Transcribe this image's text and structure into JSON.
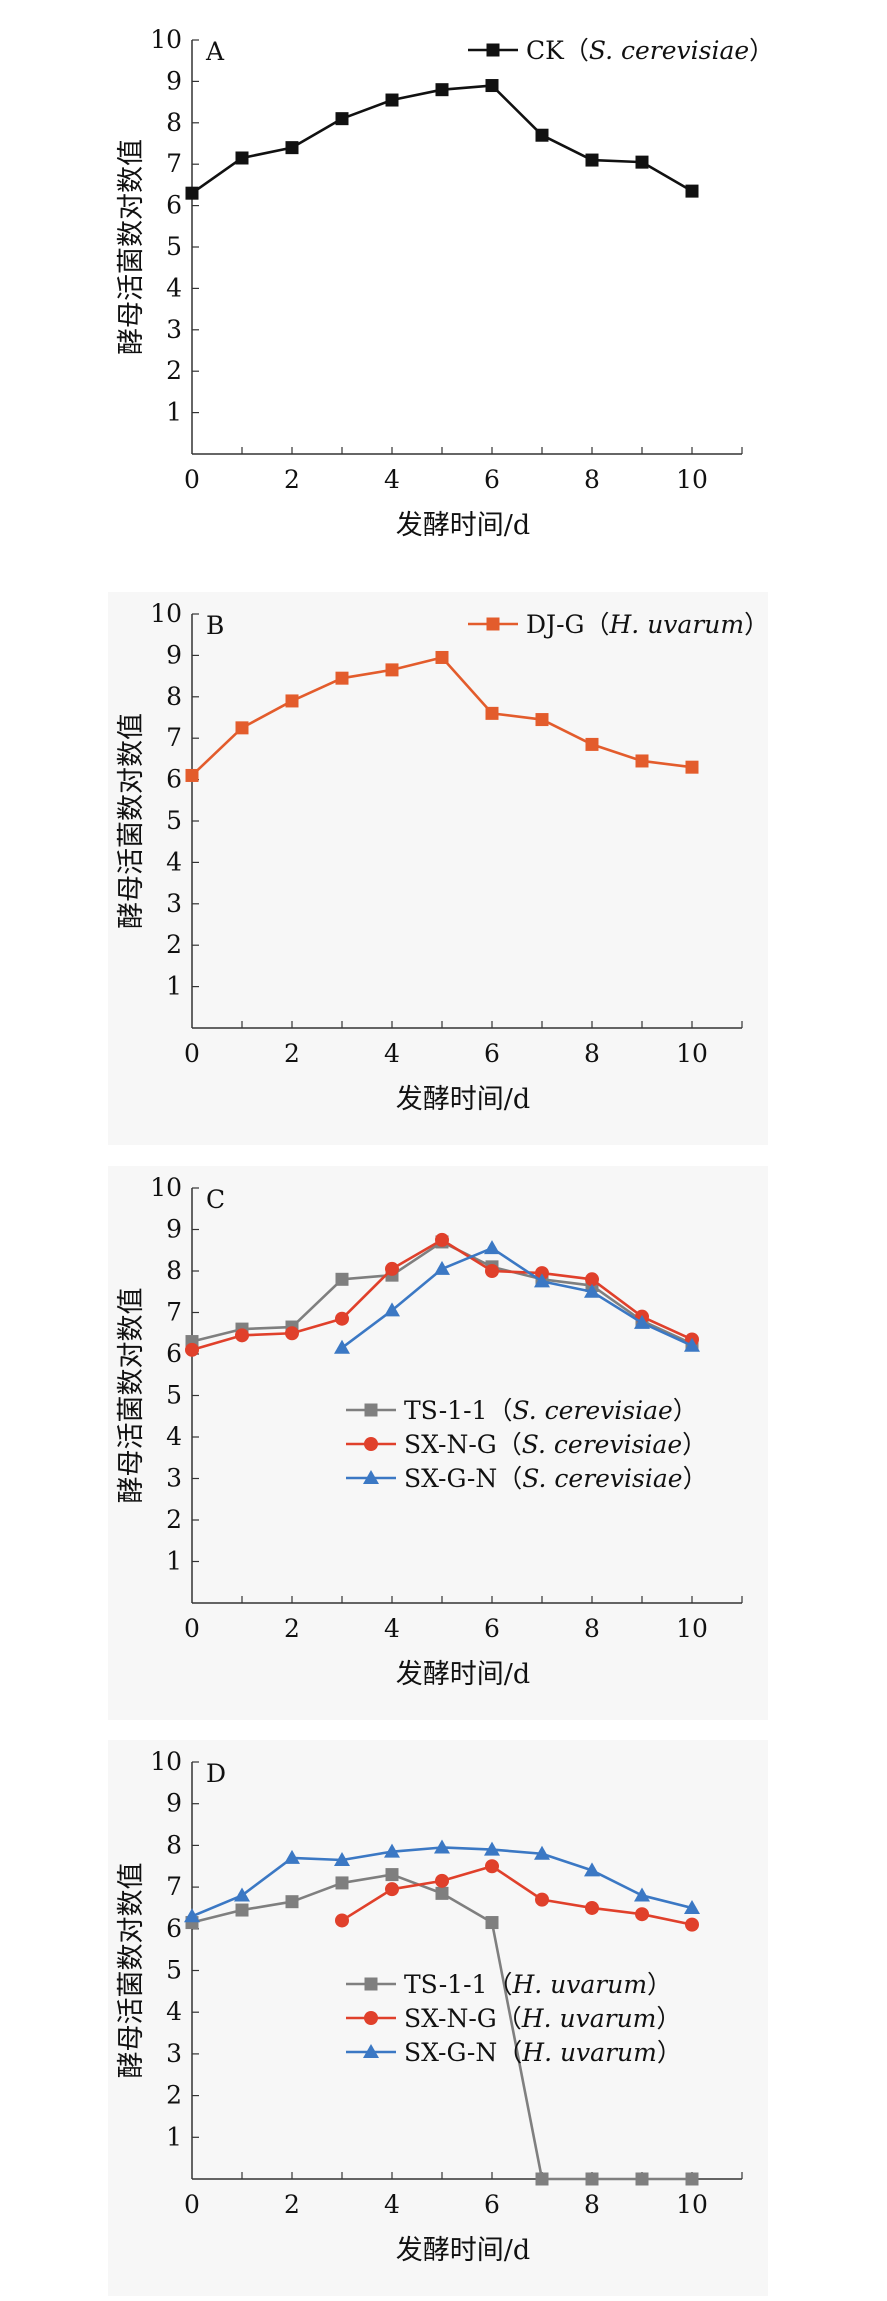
{
  "chart_data": [
    {
      "type": "line",
      "panel": "A",
      "xlabel": "发酵时间/d",
      "ylabel": "酵母活菌数对数值",
      "xlim": [
        0,
        11
      ],
      "ylim": [
        0,
        10
      ],
      "xticks": [
        "0",
        "2",
        "4",
        "6",
        "8",
        "10"
      ],
      "yticks": [
        "1",
        "2",
        "3",
        "4",
        "5",
        "6",
        "7",
        "8",
        "9",
        "10"
      ],
      "legend_position": "top-right",
      "series": [
        {
          "name": "CK",
          "species": "S. cerevisiae",
          "color": "#111111",
          "marker": "square",
          "points": [
            [
              0,
              6.3
            ],
            [
              1,
              7.15
            ],
            [
              2,
              7.4
            ],
            [
              3,
              8.1
            ],
            [
              4,
              8.55
            ],
            [
              5,
              8.8
            ],
            [
              6,
              8.9
            ],
            [
              7,
              7.7
            ],
            [
              8,
              7.1
            ],
            [
              9,
              7.05
            ],
            [
              10,
              6.35
            ]
          ]
        }
      ]
    },
    {
      "type": "line",
      "panel": "B",
      "xlabel": "发酵时间/d",
      "ylabel": "酵母活菌数对数值",
      "xlim": [
        0,
        11
      ],
      "ylim": [
        0,
        10
      ],
      "xticks": [
        "0",
        "2",
        "4",
        "6",
        "8",
        "10"
      ],
      "yticks": [
        "1",
        "2",
        "3",
        "4",
        "5",
        "6",
        "7",
        "8",
        "9",
        "10"
      ],
      "legend_position": "top-right",
      "series": [
        {
          "name": "DJ-G",
          "species": "H. uvarum",
          "color": "#e35c2c",
          "marker": "square",
          "points": [
            [
              0,
              6.1
            ],
            [
              1,
              7.25
            ],
            [
              2,
              7.9
            ],
            [
              3,
              8.45
            ],
            [
              4,
              8.65
            ],
            [
              5,
              8.95
            ],
            [
              6,
              7.6
            ],
            [
              7,
              7.45
            ],
            [
              8,
              6.85
            ],
            [
              9,
              6.45
            ],
            [
              10,
              6.3
            ]
          ]
        }
      ]
    },
    {
      "type": "line",
      "panel": "C",
      "xlabel": "发酵时间/d",
      "ylabel": "酵母活菌数对数值",
      "xlim": [
        0,
        11
      ],
      "ylim": [
        0,
        10
      ],
      "xticks": [
        "0",
        "2",
        "4",
        "6",
        "8",
        "10"
      ],
      "yticks": [
        "1",
        "2",
        "3",
        "4",
        "5",
        "6",
        "7",
        "8",
        "9",
        "10"
      ],
      "legend_position": "bottom-right",
      "series": [
        {
          "name": "TS-1-1",
          "species": "S. cerevisiae",
          "color": "#7f7f7f",
          "marker": "square",
          "points": [
            [
              0,
              6.3
            ],
            [
              1,
              6.6
            ],
            [
              2,
              6.65
            ],
            [
              3,
              7.8
            ],
            [
              4,
              7.9
            ],
            [
              5,
              8.7
            ],
            [
              6,
              8.1
            ],
            [
              7,
              7.8
            ],
            [
              8,
              7.65
            ],
            [
              9,
              6.8
            ],
            [
              10,
              6.25
            ]
          ]
        },
        {
          "name": "SX-N-G",
          "species": "S. cerevisiae",
          "color": "#e0402b",
          "marker": "circle",
          "points": [
            [
              0,
              6.1
            ],
            [
              1,
              6.45
            ],
            [
              2,
              6.5
            ],
            [
              3,
              6.85
            ],
            [
              4,
              8.05
            ],
            [
              5,
              8.75
            ],
            [
              6,
              8.0
            ],
            [
              7,
              7.95
            ],
            [
              8,
              7.8
            ],
            [
              9,
              6.9
            ],
            [
              10,
              6.35
            ]
          ]
        },
        {
          "name": "SX-G-N",
          "species": "S. cerevisiae",
          "color": "#3b78c4",
          "marker": "triangle",
          "points": [
            [
              3,
              6.15
            ],
            [
              4,
              7.05
            ],
            [
              5,
              8.05
            ],
            [
              6,
              8.55
            ],
            [
              7,
              7.75
            ],
            [
              8,
              7.5
            ],
            [
              9,
              6.75
            ],
            [
              10,
              6.2
            ]
          ]
        }
      ]
    },
    {
      "type": "line",
      "panel": "D",
      "xlabel": "发酵时间/d",
      "ylabel": "酵母活菌数对数值",
      "xlim": [
        0,
        11
      ],
      "ylim": [
        0,
        10
      ],
      "xticks": [
        "0",
        "2",
        "4",
        "6",
        "8",
        "10"
      ],
      "yticks": [
        "1",
        "2",
        "3",
        "4",
        "5",
        "6",
        "7",
        "8",
        "9",
        "10"
      ],
      "legend_position": "bottom-right",
      "series": [
        {
          "name": "TS-1-1",
          "species": "H. uvarum",
          "color": "#7f7f7f",
          "marker": "square",
          "points": [
            [
              0,
              6.15
            ],
            [
              1,
              6.45
            ],
            [
              2,
              6.65
            ],
            [
              3,
              7.1
            ],
            [
              4,
              7.3
            ],
            [
              5,
              6.85
            ],
            [
              6,
              6.15
            ],
            [
              7,
              0
            ],
            [
              8,
              0
            ],
            [
              9,
              0
            ],
            [
              10,
              0
            ]
          ]
        },
        {
          "name": "SX-N-G",
          "species": "H. uvarum",
          "color": "#e0402b",
          "marker": "circle",
          "points": [
            [
              3,
              6.2
            ],
            [
              4,
              6.95
            ],
            [
              5,
              7.15
            ],
            [
              6,
              7.5
            ],
            [
              7,
              6.7
            ],
            [
              8,
              6.5
            ],
            [
              9,
              6.35
            ],
            [
              10,
              6.1
            ]
          ]
        },
        {
          "name": "SX-G-N",
          "species": "H. uvarum",
          "color": "#3b78c4",
          "marker": "triangle",
          "points": [
            [
              0,
              6.3
            ],
            [
              1,
              6.8
            ],
            [
              2,
              7.7
            ],
            [
              3,
              7.65
            ],
            [
              4,
              7.85
            ],
            [
              5,
              7.95
            ],
            [
              6,
              7.9
            ],
            [
              7,
              7.8
            ],
            [
              8,
              7.4
            ],
            [
              9,
              6.8
            ],
            [
              10,
              6.5
            ]
          ]
        }
      ]
    }
  ]
}
